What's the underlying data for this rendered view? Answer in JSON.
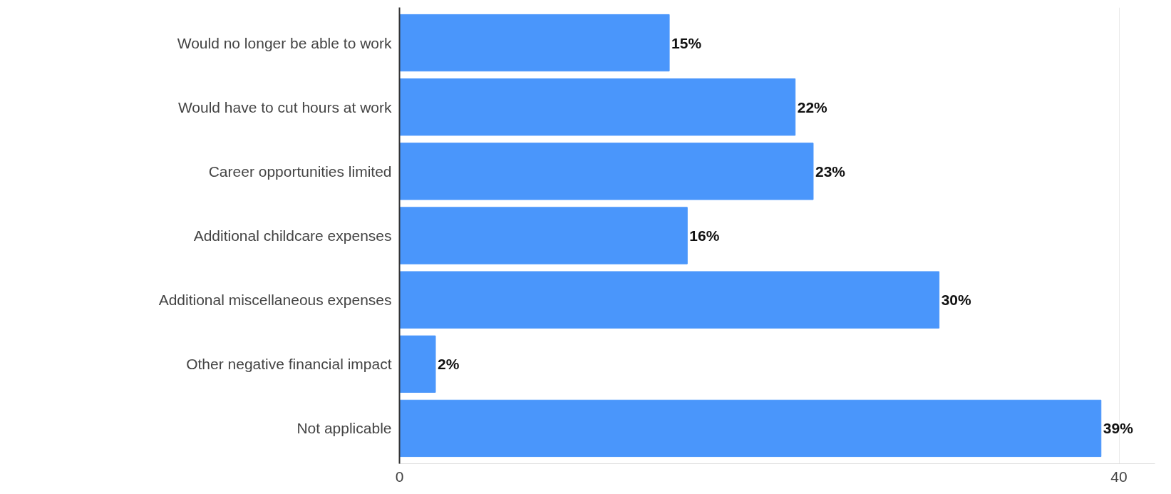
{
  "chart_data": {
    "type": "bar",
    "orientation": "horizontal",
    "categories": [
      "Would no longer be able to work",
      "Would have to cut hours at work",
      "Career opportunities limited",
      "Additional childcare expenses",
      "Additional miscellaneous expenses",
      "Other negative financial impact",
      "Not applicable"
    ],
    "values": [
      15,
      22,
      23,
      16,
      30,
      2,
      39
    ],
    "value_labels": [
      "15%",
      "22%",
      "23%",
      "16%",
      "30%",
      "2%",
      "39%"
    ],
    "color": "#4a96fb",
    "xlim": [
      0,
      42
    ],
    "xticks": [
      0,
      40
    ],
    "grid": "x"
  }
}
